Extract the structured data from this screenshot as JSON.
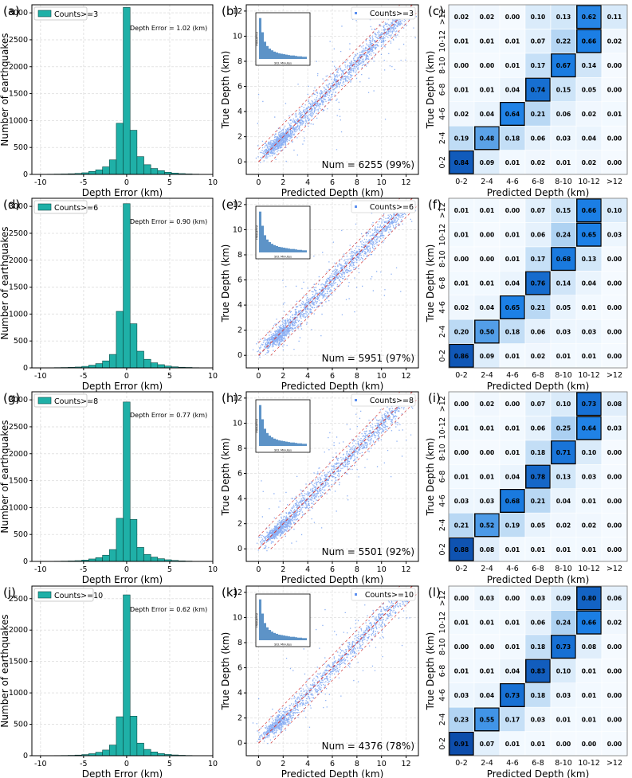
{
  "chart_data": [
    {
      "type": "bar",
      "panel": "(a)",
      "legend": "Counts>=3",
      "annotation": "Depth Error = 1.02 (km)",
      "xlabel": "Depth Error (km)",
      "ylabel": "Number of earthquakes",
      "xlim": [
        -11,
        10
      ],
      "ylim": [
        0,
        3150
      ],
      "xticks": [
        -10,
        -5,
        0,
        5,
        10
      ],
      "yticks": [
        0,
        500,
        1000,
        1500,
        2000,
        2500,
        3000
      ],
      "bin_width": 0.8,
      "bin_centers": [
        -9.6,
        -8.8,
        -8.0,
        -7.2,
        -6.4,
        -5.6,
        -4.8,
        -4.0,
        -3.2,
        -2.4,
        -1.6,
        -0.8,
        0.0,
        0.8,
        1.6,
        2.4,
        3.2,
        4.0,
        4.8,
        5.6,
        6.4,
        7.2,
        8.0,
        8.8
      ],
      "values": [
        3,
        4,
        6,
        8,
        12,
        18,
        30,
        55,
        85,
        140,
        270,
        950,
        3100,
        820,
        330,
        180,
        110,
        70,
        40,
        25,
        15,
        9,
        5,
        3
      ]
    },
    {
      "type": "scatter",
      "panel": "(b)",
      "legend": "Counts>=3",
      "annotation": "Num = 6255 (99%)",
      "xlabel": "Predicted Depth (km)",
      "ylabel": "True Depth (km)",
      "xlim": [
        -1,
        13
      ],
      "ylim": [
        -1,
        12.5
      ],
      "xticks": [
        0,
        2,
        4,
        6,
        8,
        10,
        12
      ],
      "yticks": [
        0,
        2,
        4,
        6,
        8,
        10,
        12
      ],
      "n_points": 6255,
      "inset_xlabel": "Std. Minutes",
      "inset_ylabel": "Frequency"
    },
    {
      "type": "heatmap",
      "panel": "(c)",
      "xlabel": "Predicted Depth (km)",
      "ylabel": "True Depth (km)",
      "categories": [
        "0-2",
        "2-4",
        "4-6",
        "6-8",
        "8-10",
        "10-12",
        ">12"
      ],
      "matrix": [
        [
          0.84,
          0.09,
          0.01,
          0.02,
          0.01,
          0.02,
          0.0
        ],
        [
          0.19,
          0.48,
          0.18,
          0.06,
          0.03,
          0.04,
          0.0
        ],
        [
          0.02,
          0.04,
          0.64,
          0.21,
          0.06,
          0.02,
          0.01
        ],
        [
          0.01,
          0.01,
          0.04,
          0.74,
          0.15,
          0.05,
          0.0
        ],
        [
          0.0,
          0.0,
          0.01,
          0.17,
          0.67,
          0.14,
          0.0
        ],
        [
          0.01,
          0.01,
          0.01,
          0.07,
          0.22,
          0.66,
          0.02
        ],
        [
          0.02,
          0.02,
          0.0,
          0.1,
          0.13,
          0.62,
          0.11
        ]
      ]
    },
    {
      "type": "bar",
      "panel": "(d)",
      "legend": "Counts>=6",
      "annotation": "Depth Error = 0.90 (km)",
      "xlabel": "Depth Error (km)",
      "ylabel": "Number of earthquakes",
      "xlim": [
        -11,
        10
      ],
      "ylim": [
        0,
        3150
      ],
      "xticks": [
        -10,
        -5,
        0,
        5,
        10
      ],
      "yticks": [
        0,
        500,
        1000,
        1500,
        2000,
        2500,
        3000
      ],
      "bin_width": 0.8,
      "bin_centers": [
        -9.6,
        -8.8,
        -8.0,
        -7.2,
        -6.4,
        -5.6,
        -4.8,
        -4.0,
        -3.2,
        -2.4,
        -1.6,
        -0.8,
        0.0,
        0.8,
        1.6,
        2.4,
        3.2,
        4.0,
        4.8,
        5.6,
        6.4,
        7.2,
        8.0,
        8.8
      ],
      "values": [
        2,
        3,
        5,
        7,
        10,
        16,
        28,
        50,
        80,
        130,
        250,
        1050,
        3050,
        820,
        310,
        160,
        95,
        60,
        35,
        20,
        12,
        8,
        4,
        2
      ]
    },
    {
      "type": "scatter",
      "panel": "(e)",
      "legend": "Counts>=6",
      "annotation": "Num = 5951 (97%)",
      "xlabel": "Predicted Depth (km)",
      "ylabel": "True Depth (km)",
      "xlim": [
        -1,
        13
      ],
      "ylim": [
        -1,
        12.5
      ],
      "xticks": [
        0,
        2,
        4,
        6,
        8,
        10,
        12
      ],
      "yticks": [
        0,
        2,
        4,
        6,
        8,
        10,
        12
      ],
      "n_points": 5951,
      "inset_xlabel": "Std. Minutes",
      "inset_ylabel": "Frequency"
    },
    {
      "type": "heatmap",
      "panel": "(f)",
      "xlabel": "Predicted Depth (km)",
      "ylabel": "True Depth (km)",
      "categories": [
        "0-2",
        "2-4",
        "4-6",
        "6-8",
        "8-10",
        "10-12",
        ">12"
      ],
      "matrix": [
        [
          0.86,
          0.09,
          0.01,
          0.02,
          0.01,
          0.01,
          0.0
        ],
        [
          0.2,
          0.5,
          0.18,
          0.06,
          0.03,
          0.03,
          0.0
        ],
        [
          0.02,
          0.04,
          0.65,
          0.21,
          0.05,
          0.01,
          0.0
        ],
        [
          0.01,
          0.01,
          0.04,
          0.76,
          0.14,
          0.04,
          0.0
        ],
        [
          0.0,
          0.0,
          0.01,
          0.17,
          0.68,
          0.13,
          0.0
        ],
        [
          0.01,
          0.0,
          0.01,
          0.06,
          0.24,
          0.65,
          0.03
        ],
        [
          0.01,
          0.01,
          0.0,
          0.07,
          0.15,
          0.66,
          0.1
        ]
      ]
    },
    {
      "type": "bar",
      "panel": "(g)",
      "legend": "Counts>=8",
      "annotation": "Depth Error = 0.77 (km)",
      "xlabel": "Depth Error (km)",
      "ylabel": "Number of earthquakes",
      "xlim": [
        -11,
        10
      ],
      "ylim": [
        0,
        3150
      ],
      "xticks": [
        -10,
        -5,
        0,
        5,
        10
      ],
      "yticks": [
        0,
        500,
        1000,
        1500,
        2000,
        2500,
        3000
      ],
      "bin_width": 0.8,
      "bin_centers": [
        -9.6,
        -8.8,
        -8.0,
        -7.2,
        -6.4,
        -5.6,
        -4.8,
        -4.0,
        -3.2,
        -2.4,
        -1.6,
        -0.8,
        0.0,
        0.8,
        1.6,
        2.4,
        3.2,
        4.0,
        4.8,
        5.6,
        6.4,
        7.2,
        8.0,
        8.8
      ],
      "values": [
        2,
        2,
        4,
        6,
        9,
        14,
        25,
        45,
        70,
        115,
        220,
        800,
        2960,
        780,
        260,
        130,
        80,
        50,
        30,
        18,
        10,
        6,
        3,
        2
      ]
    },
    {
      "type": "scatter",
      "panel": "(h)",
      "legend": "Counts>=8",
      "annotation": "Num = 5501 (92%)",
      "xlabel": "Predicted Depth (km)",
      "ylabel": "True Depth (km)",
      "xlim": [
        -1,
        13
      ],
      "ylim": [
        -1,
        12.5
      ],
      "xticks": [
        0,
        2,
        4,
        6,
        8,
        10,
        12
      ],
      "yticks": [
        0,
        2,
        4,
        6,
        8,
        10,
        12
      ],
      "n_points": 5501,
      "inset_xlabel": "Std. Minutes",
      "inset_ylabel": "Frequency"
    },
    {
      "type": "heatmap",
      "panel": "(i)",
      "xlabel": "Predicted Depth (km)",
      "ylabel": "True Depth (km)",
      "categories": [
        "0-2",
        "2-4",
        "4-6",
        "6-8",
        "8-10",
        "10-12",
        ">12"
      ],
      "matrix": [
        [
          0.88,
          0.08,
          0.01,
          0.01,
          0.01,
          0.01,
          0.0
        ],
        [
          0.21,
          0.52,
          0.19,
          0.05,
          0.02,
          0.02,
          0.0
        ],
        [
          0.03,
          0.03,
          0.68,
          0.21,
          0.04,
          0.01,
          0.0
        ],
        [
          0.01,
          0.01,
          0.04,
          0.78,
          0.13,
          0.03,
          0.0
        ],
        [
          0.0,
          0.0,
          0.01,
          0.18,
          0.71,
          0.1,
          0.0
        ],
        [
          0.01,
          0.01,
          0.01,
          0.06,
          0.25,
          0.64,
          0.03
        ],
        [
          0.0,
          0.02,
          0.0,
          0.07,
          0.1,
          0.73,
          0.08
        ]
      ]
    },
    {
      "type": "bar",
      "panel": "(j)",
      "legend": "Counts>=10",
      "annotation": "Depth Error = 0.62 (km)",
      "xlabel": "Depth Error (km)",
      "ylabel": "Number of earthquakes",
      "xlim": [
        -11,
        10
      ],
      "ylim": [
        0,
        2700
      ],
      "xticks": [
        -10,
        -5,
        0,
        5,
        10
      ],
      "yticks": [
        0,
        500,
        1000,
        1500,
        2000,
        2500
      ],
      "bin_width": 0.8,
      "bin_centers": [
        -9.6,
        -8.8,
        -8.0,
        -7.2,
        -6.4,
        -5.6,
        -4.8,
        -4.0,
        -3.2,
        -2.4,
        -1.6,
        -0.8,
        0.0,
        0.8,
        1.6,
        2.4,
        3.2,
        4.0,
        4.8,
        5.6,
        6.4,
        7.2,
        8.0,
        8.8
      ],
      "values": [
        1,
        2,
        3,
        4,
        6,
        10,
        18,
        32,
        55,
        90,
        170,
        620,
        2560,
        630,
        200,
        100,
        60,
        35,
        20,
        12,
        7,
        4,
        2,
        1
      ]
    },
    {
      "type": "scatter",
      "panel": "(k)",
      "legend": "Counts>=10",
      "annotation": "Num = 4376 (78%)",
      "xlabel": "Predicted Depth (km)",
      "ylabel": "True Depth (km)",
      "xlim": [
        -1,
        13
      ],
      "ylim": [
        -1,
        12.5
      ],
      "xticks": [
        0,
        2,
        4,
        6,
        8,
        10,
        12
      ],
      "yticks": [
        0,
        2,
        4,
        6,
        8,
        10,
        12
      ],
      "n_points": 4376,
      "inset_xlabel": "Std. Minutes",
      "inset_ylabel": "Frequency"
    },
    {
      "type": "heatmap",
      "panel": "(l)",
      "xlabel": "Predicted Depth (km)",
      "ylabel": "True Depth (km)",
      "categories": [
        "0-2",
        "2-4",
        "4-6",
        "6-8",
        "8-10",
        "10-12",
        ">12"
      ],
      "matrix": [
        [
          0.91,
          0.07,
          0.01,
          0.01,
          0.0,
          0.0,
          0.0
        ],
        [
          0.23,
          0.55,
          0.17,
          0.03,
          0.01,
          0.01,
          0.0
        ],
        [
          0.03,
          0.04,
          0.73,
          0.18,
          0.03,
          0.01,
          0.0
        ],
        [
          0.01,
          0.01,
          0.04,
          0.83,
          0.1,
          0.01,
          0.0
        ],
        [
          0.0,
          0.0,
          0.01,
          0.18,
          0.73,
          0.08,
          0.0
        ],
        [
          0.01,
          0.01,
          0.01,
          0.06,
          0.24,
          0.66,
          0.02
        ],
        [
          0.0,
          0.03,
          0.0,
          0.03,
          0.09,
          0.8,
          0.06
        ]
      ]
    }
  ],
  "colors": {
    "hist_fill": "#1fb0a7",
    "hist_edge": "#0a4a45",
    "scatter": "#5b8ff0",
    "reference_line": "#d23a3a",
    "heat_low": "#f4f9ff",
    "heat_high": "#0b3d8f"
  }
}
